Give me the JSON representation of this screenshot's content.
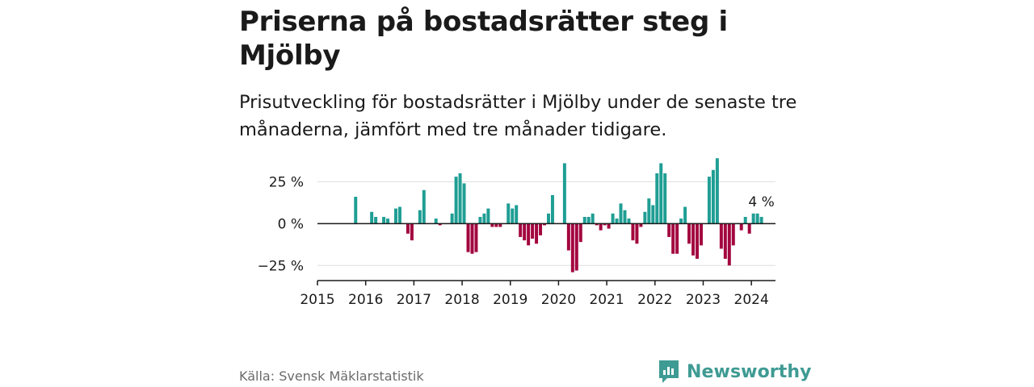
{
  "title": "Priserna på bostadsrätter steg i Mjölby",
  "subtitle": "Prisutveckling för bostadsrätter i Mjölby under de senaste tre månaderna, jämfört med tre månader tidigare.",
  "source": "Källa: Svensk Mäklarstatistik",
  "brand": "Newsworthy",
  "colors": {
    "positive": "#1f9e94",
    "negative": "#a3063f",
    "brand": "#3e9b93",
    "grid": "#dddddd"
  },
  "chart_data": {
    "type": "bar",
    "unit": "%",
    "title": "",
    "xlabel": "",
    "ylabel": "",
    "ylim": [
      -34,
      42
    ],
    "yticks": [
      {
        "value": 25,
        "label": "25 %"
      },
      {
        "value": 0,
        "label": "0 %"
      },
      {
        "value": -25,
        "label": "−25 %"
      }
    ],
    "xlim": [
      2015.0,
      2024.5
    ],
    "xticks": [
      {
        "value": 2015,
        "label": "2015"
      },
      {
        "value": 2016,
        "label": "2016"
      },
      {
        "value": 2017,
        "label": "2017"
      },
      {
        "value": 2018,
        "label": "2018"
      },
      {
        "value": 2019,
        "label": "2019"
      },
      {
        "value": 2020,
        "label": "2020"
      },
      {
        "value": 2021,
        "label": "2021"
      },
      {
        "value": 2022,
        "label": "2022"
      },
      {
        "value": 2023,
        "label": "2023"
      },
      {
        "value": 2024,
        "label": "2024"
      }
    ],
    "annotation": {
      "label": "4 %",
      "value": 4
    },
    "series": [
      {
        "name": "Prisutveckling",
        "start": "2015-10",
        "values": [
          16,
          null,
          null,
          null,
          7,
          4,
          null,
          4,
          3,
          null,
          9,
          10,
          null,
          -6,
          -10,
          null,
          8,
          20,
          null,
          null,
          3,
          -1,
          null,
          null,
          6,
          28,
          30,
          24,
          -17,
          -18,
          -17,
          4,
          6,
          9,
          -2,
          -2,
          -2,
          null,
          12,
          9,
          11,
          -8,
          -10,
          -13,
          -9,
          -12,
          -7,
          -1,
          6,
          17,
          null,
          null,
          36,
          -16,
          -29,
          -28,
          -11,
          4,
          4,
          6,
          -1,
          -4,
          -1,
          -3,
          6,
          3,
          12,
          8,
          3,
          -10,
          -12,
          -2,
          7,
          15,
          11,
          30,
          36,
          30,
          -8,
          -18,
          -18,
          3,
          10,
          -12,
          -19,
          -21,
          -13,
          null,
          28,
          32,
          39,
          -15,
          -21,
          -25,
          -13,
          null,
          -4,
          4,
          -6,
          6,
          6,
          4
        ]
      }
    ]
  }
}
